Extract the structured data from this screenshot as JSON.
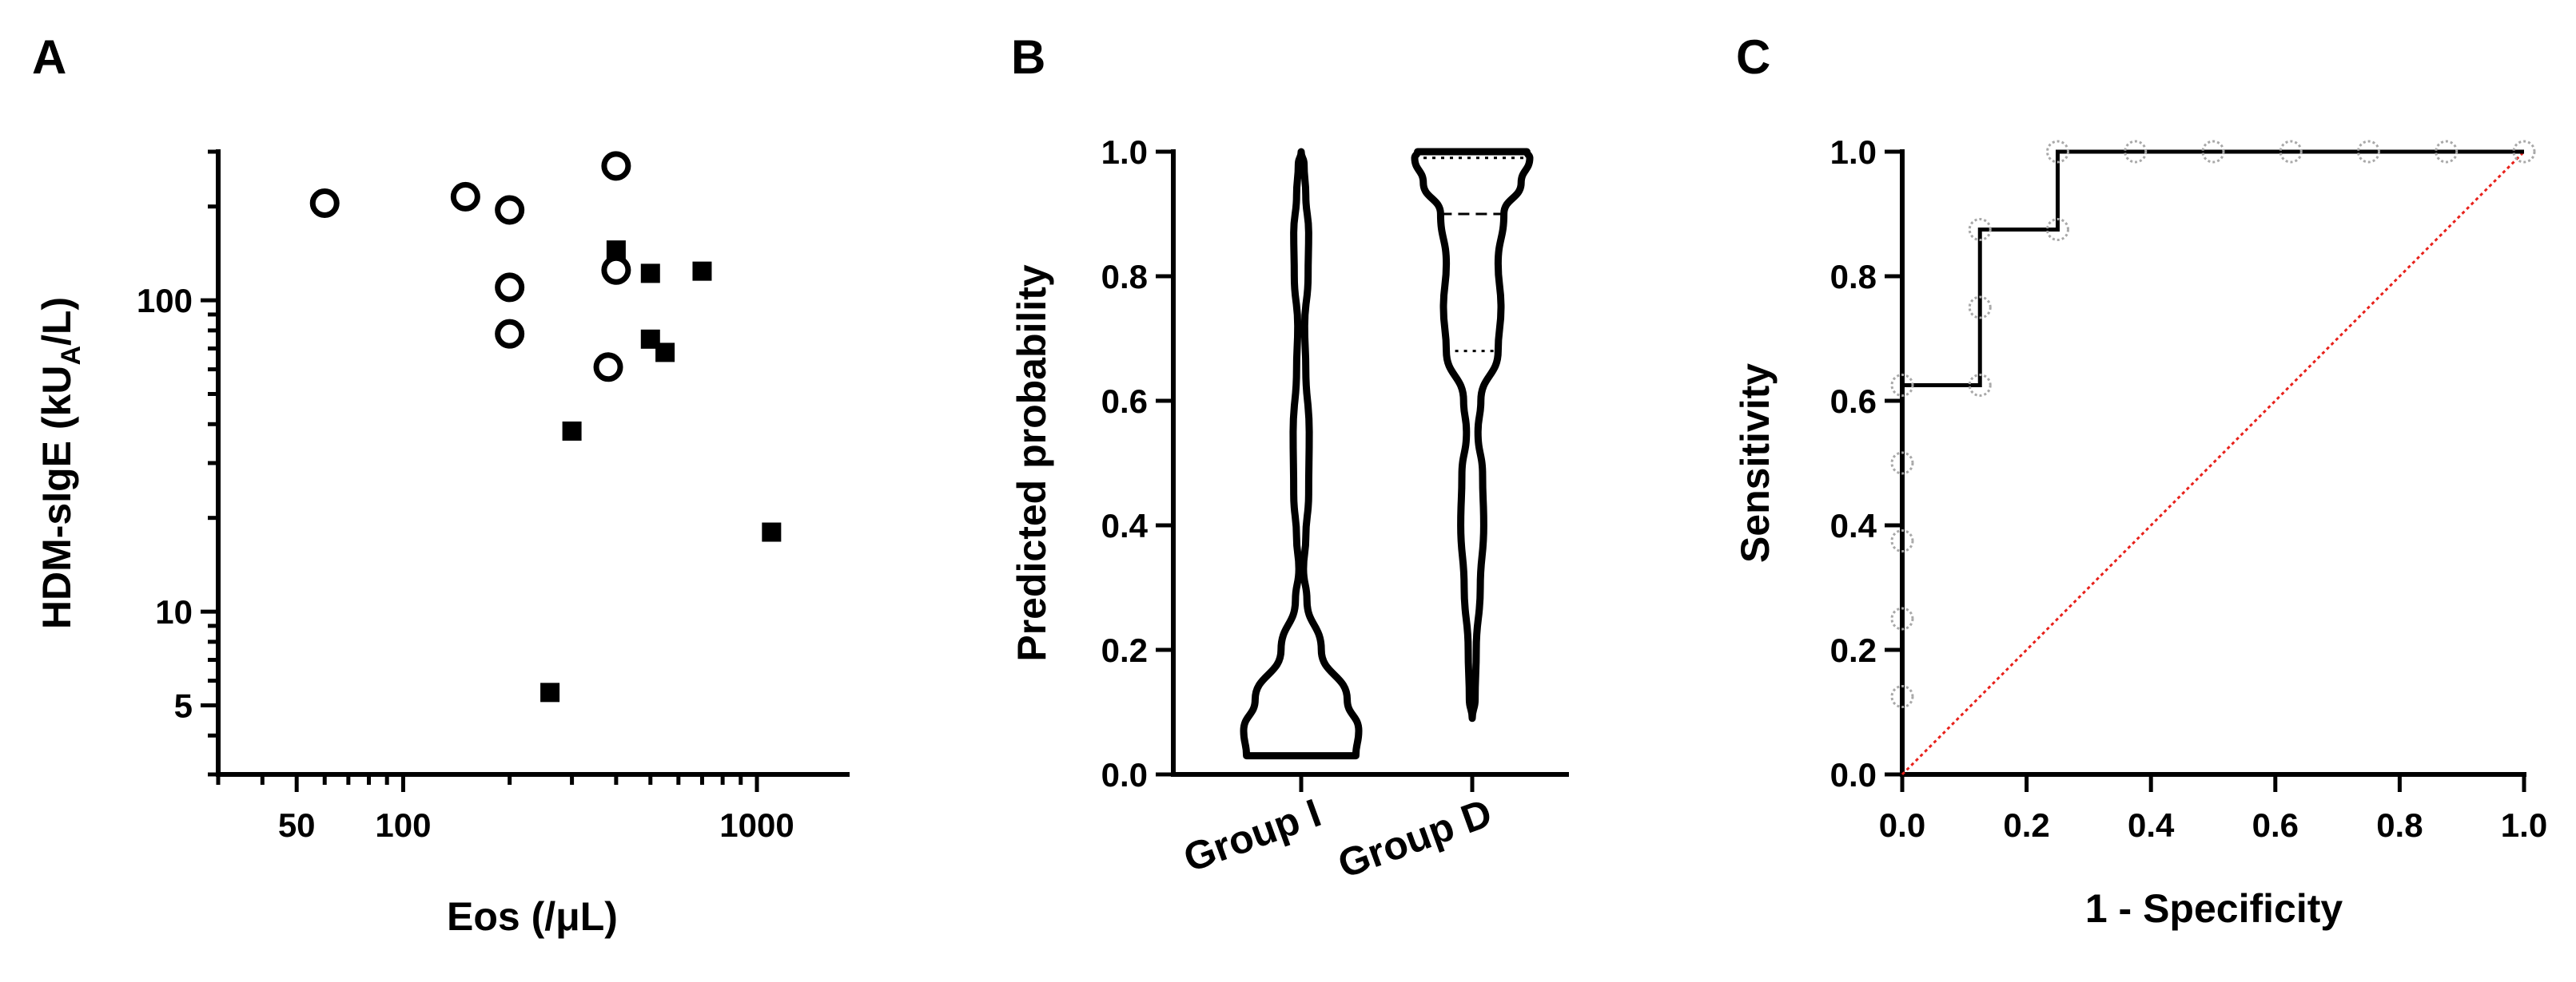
{
  "colors": {
    "ink": "#000000",
    "reference_line": "#e8211b",
    "roc_marker": "#a8a8a8",
    "background": "#ffffff"
  },
  "chart_data": [
    {
      "panel": "A",
      "type": "scatter",
      "xlabel": "Eos (/μL)",
      "ylabel": "HDM-sIgE (kUA/L)",
      "xscale": "log",
      "yscale": "log",
      "xlim": [
        30,
        1800
      ],
      "ylim": [
        3,
        300
      ],
      "xticks": [
        50,
        100,
        1000
      ],
      "yticks": [
        5,
        10,
        100
      ],
      "grid": false,
      "legend": "none",
      "series": [
        {
          "marker": "open-circle",
          "points": [
            {
              "x": 60,
              "y": 205
            },
            {
              "x": 150,
              "y": 215
            },
            {
              "x": 200,
              "y": 195
            },
            {
              "x": 200,
              "y": 110
            },
            {
              "x": 200,
              "y": 78
            },
            {
              "x": 400,
              "y": 270
            },
            {
              "x": 400,
              "y": 125
            },
            {
              "x": 380,
              "y": 61
            }
          ]
        },
        {
          "marker": "filled-square",
          "points": [
            {
              "x": 400,
              "y": 145
            },
            {
              "x": 500,
              "y": 122
            },
            {
              "x": 700,
              "y": 124
            },
            {
              "x": 500,
              "y": 75
            },
            {
              "x": 550,
              "y": 68
            },
            {
              "x": 300,
              "y": 38
            },
            {
              "x": 1100,
              "y": 18
            },
            {
              "x": 260,
              "y": 5.5
            }
          ]
        }
      ]
    },
    {
      "panel": "B",
      "type": "violin",
      "ylabel": "Predicted probability",
      "ylim": [
        0,
        1
      ],
      "yticks": [
        "0.0",
        "0.2",
        "0.4",
        "0.6",
        "0.8",
        "1.0"
      ],
      "categories": [
        "Group I",
        "Group D"
      ],
      "groups": [
        {
          "name": "Group I",
          "range": [
            0.03,
            1.0
          ],
          "quartiles": {
            "q1": 0.03,
            "median": 0.03,
            "q3": 0.03
          },
          "density": [
            [
              0.03,
              0.95
            ],
            [
              0.07,
              1.0
            ],
            [
              0.12,
              0.8
            ],
            [
              0.2,
              0.35
            ],
            [
              0.28,
              0.1
            ],
            [
              0.33,
              0.04
            ],
            [
              0.38,
              0.08
            ],
            [
              0.45,
              0.13
            ],
            [
              0.55,
              0.14
            ],
            [
              0.65,
              0.08
            ],
            [
              0.72,
              0.06
            ],
            [
              0.8,
              0.12
            ],
            [
              0.87,
              0.13
            ],
            [
              0.93,
              0.08
            ],
            [
              0.98,
              0.05
            ],
            [
              1.0,
              0.0
            ]
          ]
        },
        {
          "name": "Group D",
          "range": [
            0.09,
            1.0
          ],
          "quartiles": {
            "q1": 0.68,
            "median": 0.9,
            "q3": 0.99
          },
          "density": [
            [
              0.09,
              0.0
            ],
            [
              0.12,
              0.05
            ],
            [
              0.2,
              0.07
            ],
            [
              0.3,
              0.14
            ],
            [
              0.4,
              0.2
            ],
            [
              0.48,
              0.18
            ],
            [
              0.55,
              0.1
            ],
            [
              0.6,
              0.15
            ],
            [
              0.68,
              0.45
            ],
            [
              0.75,
              0.5
            ],
            [
              0.82,
              0.45
            ],
            [
              0.9,
              0.55
            ],
            [
              0.95,
              0.85
            ],
            [
              0.99,
              1.0
            ],
            [
              1.0,
              0.95
            ]
          ]
        }
      ]
    },
    {
      "panel": "C",
      "type": "line",
      "xlabel": "1 - Specificity",
      "ylabel": "Sensitivity",
      "xlim": [
        0,
        1
      ],
      "ylim": [
        0,
        1
      ],
      "xticks": [
        "0.0",
        "0.2",
        "0.4",
        "0.6",
        "0.8",
        "1.0"
      ],
      "yticks": [
        "0.0",
        "0.2",
        "0.4",
        "0.6",
        "0.8",
        "1.0"
      ],
      "series": [
        {
          "kind": "roc-step",
          "points": [
            [
              0,
              0.625
            ],
            [
              0.125,
              0.625
            ],
            [
              0.125,
              0.875
            ],
            [
              0.25,
              0.875
            ],
            [
              0.25,
              1.0
            ],
            [
              1.0,
              1.0
            ]
          ]
        },
        {
          "kind": "roc-markers",
          "points": [
            [
              0,
              0.125
            ],
            [
              0,
              0.25
            ],
            [
              0,
              0.375
            ],
            [
              0,
              0.5
            ],
            [
              0,
              0.625
            ],
            [
              0.125,
              0.625
            ],
            [
              0.125,
              0.75
            ],
            [
              0.125,
              0.875
            ],
            [
              0.25,
              0.875
            ],
            [
              0.25,
              1.0
            ],
            [
              0.375,
              1.0
            ],
            [
              0.5,
              1.0
            ],
            [
              0.625,
              1.0
            ],
            [
              0.75,
              1.0
            ],
            [
              0.875,
              1.0
            ],
            [
              1.0,
              1.0
            ]
          ]
        },
        {
          "kind": "reference-diagonal",
          "points": [
            [
              0,
              0
            ],
            [
              1,
              1
            ]
          ]
        }
      ]
    }
  ],
  "labels": {
    "panelA": "A",
    "panelB": "B",
    "panelC": "C",
    "a_x_title": "Eos (/μL)",
    "a_y_title_pre": "HDM-sIgE (kU",
    "a_y_title_sub": "A",
    "a_y_title_post": "/L)",
    "b_y_title": "Predicted probability",
    "c_x_title": "1 - Specificity",
    "c_y_title": "Sensitivity"
  }
}
